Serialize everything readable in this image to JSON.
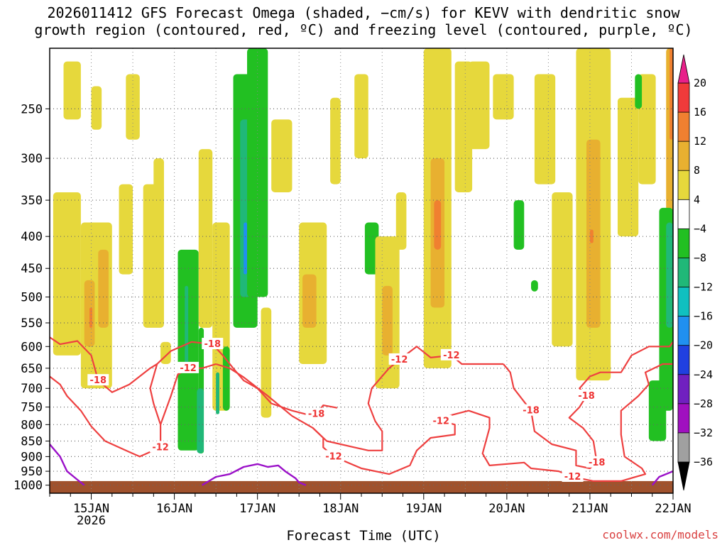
{
  "title_line1": "2026011412 GFS Forecast Omega (shaded, −cm/s) for KEVV with dendritic snow",
  "title_line2": "growth region (contoured, red, ºC) and freezing level (contoured, purple, ºC)",
  "xlabel": "Forecast Time (UTC)",
  "credit": "coolwx.com/models",
  "chart_data": {
    "type": "heatmap",
    "x_ticks": [
      {
        "hour": 12,
        "label": "15JAN",
        "sublabel": "2026"
      },
      {
        "hour": 36,
        "label": "16JAN",
        "sublabel": ""
      },
      {
        "hour": 60,
        "label": "17JAN",
        "sublabel": ""
      },
      {
        "hour": 84,
        "label": "18JAN",
        "sublabel": ""
      },
      {
        "hour": 108,
        "label": "19JAN",
        "sublabel": ""
      },
      {
        "hour": 132,
        "label": "20JAN",
        "sublabel": ""
      },
      {
        "hour": 156,
        "label": "21JAN",
        "sublabel": ""
      },
      {
        "hour": 180,
        "label": "22JAN",
        "sublabel": ""
      }
    ],
    "x_range_hours": [
      0,
      180
    ],
    "y_ticks": [
      250,
      300,
      350,
      400,
      450,
      500,
      550,
      600,
      650,
      700,
      750,
      800,
      850,
      900,
      950,
      1000
    ],
    "y_range_hPa": [
      200,
      1030
    ],
    "y_scale": "log",
    "grid": true,
    "colorbar": {
      "labels": [
        20,
        16,
        12,
        8,
        4,
        -4,
        -8,
        -12,
        -16,
        -20,
        -24,
        -28,
        -32,
        -36
      ],
      "bins": [
        {
          "min": 16,
          "max": 20,
          "color": "#f03a3a"
        },
        {
          "min": 12,
          "max": 16,
          "color": "#f08030"
        },
        {
          "min": 8,
          "max": 12,
          "color": "#e8b030"
        },
        {
          "min": 4,
          "max": 8,
          "color": "#e6d83c"
        },
        {
          "min": -4,
          "max": 4,
          "color": "#ffffff"
        },
        {
          "min": -8,
          "max": -4,
          "color": "#22c022"
        },
        {
          "min": -12,
          "max": -8,
          "color": "#20b878"
        },
        {
          "min": -16,
          "max": -12,
          "color": "#10c0c0"
        },
        {
          "min": -20,
          "max": -16,
          "color": "#2090f0"
        },
        {
          "min": -24,
          "max": -20,
          "color": "#2040e0"
        },
        {
          "min": -28,
          "max": -24,
          "color": "#7020c0"
        },
        {
          "min": -32,
          "max": -28,
          "color": "#a010c0"
        },
        {
          "min": -36,
          "max": -32,
          "color": "#a0a0a0"
        }
      ],
      "above_color": "#e8208a",
      "below_color": "#000000"
    },
    "omega_patches": [
      {
        "t0": 1,
        "t1": 9,
        "p0": 340,
        "p1": 620,
        "v": 6
      },
      {
        "t0": 9,
        "t1": 18,
        "p0": 380,
        "p1": 700,
        "v": 6
      },
      {
        "t0": 10,
        "t1": 13,
        "p0": 470,
        "p1": 600,
        "v": 10
      },
      {
        "t0": 11.5,
        "t1": 12.3,
        "p0": 520,
        "p1": 560,
        "v": 14
      },
      {
        "t0": 14,
        "t1": 17,
        "p0": 420,
        "p1": 560,
        "v": 9
      },
      {
        "t0": 4,
        "t1": 9,
        "p0": 210,
        "p1": 260,
        "v": 5
      },
      {
        "t0": 12,
        "t1": 15,
        "p0": 230,
        "p1": 270,
        "v": 5
      },
      {
        "t0": 20,
        "t1": 24,
        "p0": 330,
        "p1": 460,
        "v": 5
      },
      {
        "t0": 27,
        "t1": 33,
        "p0": 330,
        "p1": 560,
        "v": 5
      },
      {
        "t0": 30,
        "t1": 33,
        "p0": 300,
        "p1": 360,
        "v": 5
      },
      {
        "t0": 22,
        "t1": 26,
        "p0": 220,
        "p1": 280,
        "v": 5
      },
      {
        "t0": 32,
        "t1": 35,
        "p0": 590,
        "p1": 640,
        "v": 5
      },
      {
        "t0": 37,
        "t1": 43,
        "p0": 420,
        "p1": 880,
        "v": -6
      },
      {
        "t0": 43,
        "t1": 44.5,
        "p0": 560,
        "p1": 890,
        "v": -6
      },
      {
        "t0": 42.5,
        "t1": 44.5,
        "p0": 700,
        "p1": 890,
        "v": -10
      },
      {
        "t0": 39,
        "t1": 40,
        "p0": 480,
        "p1": 660,
        "v": -10
      },
      {
        "t0": 43,
        "t1": 47,
        "p0": 290,
        "p1": 560,
        "v": 5
      },
      {
        "t0": 47,
        "t1": 52,
        "p0": 380,
        "p1": 760,
        "v": 5
      },
      {
        "t0": 50,
        "t1": 52,
        "p0": 600,
        "p1": 760,
        "v": -6
      },
      {
        "t0": 48,
        "t1": 49,
        "p0": 660,
        "p1": 770,
        "v": -10
      },
      {
        "t0": 53,
        "t1": 60,
        "p0": 220,
        "p1": 560,
        "v": -6
      },
      {
        "t0": 55,
        "t1": 58,
        "p0": 260,
        "p1": 500,
        "v": -10
      },
      {
        "t0": 56,
        "t1": 57,
        "p0": 380,
        "p1": 460,
        "v": -18
      },
      {
        "t0": 57,
        "t1": 63,
        "p0": 200,
        "p1": 500,
        "v": -6
      },
      {
        "t0": 61,
        "t1": 64,
        "p0": 520,
        "p1": 780,
        "v": 5
      },
      {
        "t0": 64,
        "t1": 70,
        "p0": 260,
        "p1": 340,
        "v": 5
      },
      {
        "t0": 72,
        "t1": 80,
        "p0": 380,
        "p1": 640,
        "v": 6
      },
      {
        "t0": 73,
        "t1": 77,
        "p0": 460,
        "p1": 560,
        "v": 10
      },
      {
        "t0": 81,
        "t1": 84,
        "p0": 240,
        "p1": 330,
        "v": 5
      },
      {
        "t0": 88,
        "t1": 92,
        "p0": 220,
        "p1": 300,
        "v": 5
      },
      {
        "t0": 91,
        "t1": 95,
        "p0": 380,
        "p1": 460,
        "v": -6
      },
      {
        "t0": 94,
        "t1": 101,
        "p0": 400,
        "p1": 700,
        "v": 6
      },
      {
        "t0": 96,
        "t1": 99,
        "p0": 480,
        "p1": 620,
        "v": 10
      },
      {
        "t0": 100,
        "t1": 103,
        "p0": 340,
        "p1": 420,
        "v": 5
      },
      {
        "t0": 108,
        "t1": 116,
        "p0": 200,
        "p1": 650,
        "v": 6
      },
      {
        "t0": 110,
        "t1": 114,
        "p0": 300,
        "p1": 520,
        "v": 10
      },
      {
        "t0": 111,
        "t1": 113,
        "p0": 350,
        "p1": 420,
        "v": 14
      },
      {
        "t0": 117,
        "t1": 122,
        "p0": 210,
        "p1": 340,
        "v": 5
      },
      {
        "t0": 121,
        "t1": 127,
        "p0": 210,
        "p1": 290,
        "v": 5
      },
      {
        "t0": 128,
        "t1": 134,
        "p0": 220,
        "p1": 260,
        "v": 5
      },
      {
        "t0": 134,
        "t1": 137,
        "p0": 350,
        "p1": 420,
        "v": -6
      },
      {
        "t0": 139,
        "t1": 141,
        "p0": 470,
        "p1": 490,
        "v": -6
      },
      {
        "t0": 140,
        "t1": 146,
        "p0": 220,
        "p1": 330,
        "v": 5
      },
      {
        "t0": 145,
        "t1": 151,
        "p0": 340,
        "p1": 600,
        "v": 5
      },
      {
        "t0": 152,
        "t1": 162,
        "p0": 200,
        "p1": 680,
        "v": 6
      },
      {
        "t0": 155,
        "t1": 159,
        "p0": 280,
        "p1": 560,
        "v": 10
      },
      {
        "t0": 156,
        "t1": 157,
        "p0": 390,
        "p1": 410,
        "v": 14
      },
      {
        "t0": 164,
        "t1": 170,
        "p0": 240,
        "p1": 400,
        "v": 5
      },
      {
        "t0": 170,
        "t1": 175,
        "p0": 220,
        "p1": 330,
        "v": 5
      },
      {
        "t0": 169,
        "t1": 171,
        "p0": 220,
        "p1": 250,
        "v": -6
      },
      {
        "t0": 178,
        "t1": 180,
        "p0": 200,
        "p1": 560,
        "v": 10
      },
      {
        "t0": 179,
        "t1": 180,
        "p0": 200,
        "p1": 280,
        "v": 14
      },
      {
        "t0": 176,
        "t1": 180,
        "p0": 360,
        "p1": 760,
        "v": -6
      },
      {
        "t0": 178,
        "t1": 180,
        "p0": 380,
        "p1": 560,
        "v": -10
      },
      {
        "t0": 173,
        "t1": 178,
        "p0": 680,
        "p1": 850,
        "v": -6
      }
    ],
    "dgz_contours": [
      {
        "label": "-18",
        "points": [
          [
            0,
            580
          ],
          [
            3,
            595
          ],
          [
            8,
            588
          ],
          [
            12,
            620
          ],
          [
            14,
            680
          ],
          [
            18,
            710
          ],
          [
            23,
            690
          ],
          [
            29,
            650
          ],
          [
            31,
            640
          ],
          [
            35,
            610
          ],
          [
            41,
            590
          ],
          [
            47,
            595
          ],
          [
            50,
            620
          ],
          [
            53,
            650
          ],
          [
            56,
            680
          ],
          [
            60,
            700
          ],
          [
            64,
            740
          ],
          [
            70,
            760
          ],
          [
            74,
            770
          ],
          [
            77,
            770
          ],
          [
            79,
            745
          ],
          [
            83,
            752
          ]
        ]
      },
      {
        "label": "-12",
        "points": [
          [
            0,
            670
          ],
          [
            3,
            690
          ],
          [
            5,
            720
          ],
          [
            9,
            760
          ],
          [
            12,
            805
          ],
          [
            16,
            850
          ],
          [
            22,
            880
          ],
          [
            26,
            900
          ],
          [
            32,
            870
          ],
          [
            32,
            800
          ],
          [
            30,
            740
          ],
          [
            29,
            700
          ],
          [
            31,
            640
          ]
        ]
      },
      {
        "label": "-12",
        "points": [
          [
            48,
            640
          ],
          [
            44,
            650
          ],
          [
            40,
            650
          ],
          [
            37,
            665
          ],
          [
            35,
            720
          ],
          [
            32,
            800
          ]
        ]
      },
      {
        "label": "-12",
        "points": [
          [
            48,
            640
          ],
          [
            52,
            650
          ],
          [
            56,
            672
          ],
          [
            63,
            720
          ],
          [
            70,
            775
          ],
          [
            76,
            810
          ],
          [
            79,
            840
          ],
          [
            79,
            870
          ],
          [
            82,
            900
          ],
          [
            90,
            940
          ],
          [
            98,
            960
          ],
          [
            104,
            930
          ],
          [
            106,
            880
          ],
          [
            110,
            840
          ],
          [
            117,
            830
          ],
          [
            117,
            800
          ],
          [
            113,
            790
          ],
          [
            113,
            780
          ],
          [
            121,
            760
          ],
          [
            127,
            780
          ],
          [
            127,
            810
          ],
          [
            125,
            890
          ],
          [
            127,
            930
          ],
          [
            137,
            920
          ],
          [
            139,
            940
          ],
          [
            147,
            950
          ],
          [
            151,
            970
          ],
          [
            157,
            985
          ],
          [
            165,
            985
          ],
          [
            172,
            960
          ],
          [
            171,
            940
          ],
          [
            166,
            900
          ],
          [
            165,
            830
          ],
          [
            165,
            760
          ],
          [
            170,
            720
          ],
          [
            173,
            690
          ],
          [
            172,
            660
          ],
          [
            177,
            640
          ],
          [
            180,
            640
          ]
        ]
      },
      {
        "label": "-12",
        "points": [
          [
            76,
            810
          ],
          [
            78,
            830
          ],
          [
            80,
            850
          ],
          [
            88,
            870
          ],
          [
            92,
            880
          ],
          [
            96,
            880
          ],
          [
            96,
            820
          ],
          [
            94,
            790
          ],
          [
            92,
            740
          ],
          [
            93,
            700
          ],
          [
            98,
            650
          ],
          [
            101,
            630
          ],
          [
            106,
            600
          ],
          [
            110,
            625
          ],
          [
            116,
            620
          ],
          [
            119,
            640
          ],
          [
            123,
            640
          ],
          [
            131,
            640
          ]
        ]
      },
      {
        "label": "-18",
        "points": [
          [
            131,
            640
          ],
          [
            133,
            660
          ],
          [
            134,
            700
          ],
          [
            139,
            760
          ],
          [
            140,
            820
          ],
          [
            145,
            860
          ],
          [
            152,
            880
          ],
          [
            152,
            930
          ],
          [
            156,
            940
          ],
          [
            158,
            920
          ],
          [
            157,
            850
          ],
          [
            154,
            810
          ],
          [
            150,
            780
          ],
          [
            153,
            750
          ],
          [
            155,
            720
          ],
          [
            153,
            700
          ],
          [
            156,
            670
          ],
          [
            159,
            660
          ],
          [
            165,
            660
          ],
          [
            168,
            620
          ],
          [
            173,
            600
          ],
          [
            179,
            600
          ],
          [
            180,
            590
          ]
        ]
      }
    ],
    "freezing_level": [
      {
        "points": [
          [
            0,
            860
          ],
          [
            3,
            900
          ],
          [
            5,
            950
          ],
          [
            8,
            980
          ],
          [
            10,
            1000
          ]
        ]
      },
      {
        "points": [
          [
            44,
            1000
          ],
          [
            48,
            970
          ],
          [
            52,
            960
          ],
          [
            56,
            935
          ],
          [
            60,
            925
          ],
          [
            63,
            935
          ],
          [
            66,
            930
          ],
          [
            68,
            950
          ],
          [
            71,
            975
          ],
          [
            72,
            990
          ],
          [
            74,
            1000
          ]
        ]
      },
      {
        "points": [
          [
            174,
            1000
          ],
          [
            176,
            970
          ],
          [
            180,
            950
          ]
        ]
      }
    ],
    "ground_level_hPa": 985
  }
}
